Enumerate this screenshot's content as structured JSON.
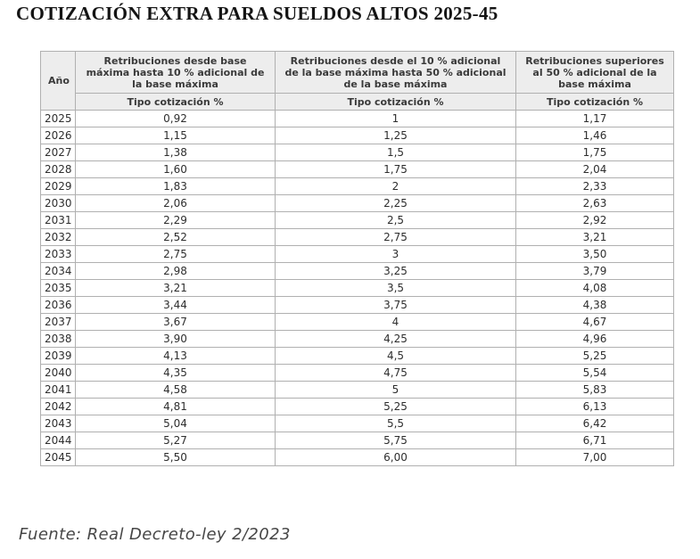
{
  "colors": {
    "header_bg": "#ededed",
    "inner_border": "#b0b0b0",
    "outer_border": "#979797",
    "header_text": "#3a3a3a",
    "cell_text": "#2e2e2e",
    "title_text": "#141414",
    "source_text": "#474747",
    "background": "#ffffff"
  },
  "chart_data": {
    "type": "table",
    "title": "COTIZACIÓN EXTRA PARA SUELDOS ALTOS 2025-45",
    "source": "Fuente: Real Decreto-ley 2/2023",
    "year_header": "Año",
    "group_headers": [
      "Retribuciones desde base máxima hasta 10 % adicional de la base máxima",
      "Retribuciones desde el 10 % adicional de la base máxima hasta 50 % adicional de la base máxima",
      "Retribuciones superiores al 50 % adicional de la base máxima"
    ],
    "rate_subheader": "Tipo cotización %",
    "rows": [
      {
        "year": "2025",
        "tier1": "0,92",
        "tier2": "1",
        "tier3": "1,17"
      },
      {
        "year": "2026",
        "tier1": "1,15",
        "tier2": "1,25",
        "tier3": "1,46"
      },
      {
        "year": "2027",
        "tier1": "1,38",
        "tier2": "1,5",
        "tier3": "1,75"
      },
      {
        "year": "2028",
        "tier1": "1,60",
        "tier2": "1,75",
        "tier3": "2,04"
      },
      {
        "year": "2029",
        "tier1": "1,83",
        "tier2": "2",
        "tier3": "2,33"
      },
      {
        "year": "2030",
        "tier1": "2,06",
        "tier2": "2,25",
        "tier3": "2,63"
      },
      {
        "year": "2031",
        "tier1": "2,29",
        "tier2": "2,5",
        "tier3": "2,92"
      },
      {
        "year": "2032",
        "tier1": "2,52",
        "tier2": "2,75",
        "tier3": "3,21"
      },
      {
        "year": "2033",
        "tier1": "2,75",
        "tier2": "3",
        "tier3": "3,50"
      },
      {
        "year": "2034",
        "tier1": "2,98",
        "tier2": "3,25",
        "tier3": "3,79"
      },
      {
        "year": "2035",
        "tier1": "3,21",
        "tier2": "3,5",
        "tier3": "4,08"
      },
      {
        "year": "2036",
        "tier1": "3,44",
        "tier2": "3,75",
        "tier3": "4,38"
      },
      {
        "year": "2037",
        "tier1": "3,67",
        "tier2": "4",
        "tier3": "4,67"
      },
      {
        "year": "2038",
        "tier1": "3,90",
        "tier2": "4,25",
        "tier3": "4,96"
      },
      {
        "year": "2039",
        "tier1": "4,13",
        "tier2": "4,5",
        "tier3": "5,25"
      },
      {
        "year": "2040",
        "tier1": "4,35",
        "tier2": "4,75",
        "tier3": "5,54"
      },
      {
        "year": "2041",
        "tier1": "4,58",
        "tier2": "5",
        "tier3": "5,83"
      },
      {
        "year": "2042",
        "tier1": "4,81",
        "tier2": "5,25",
        "tier3": "6,13"
      },
      {
        "year": "2043",
        "tier1": "5,04",
        "tier2": "5,5",
        "tier3": "6,42"
      },
      {
        "year": "2044",
        "tier1": "5,27",
        "tier2": "5,75",
        "tier3": "6,71"
      },
      {
        "year": "2045",
        "tier1": "5,50",
        "tier2": "6,00",
        "tier3": "7,00"
      }
    ]
  }
}
